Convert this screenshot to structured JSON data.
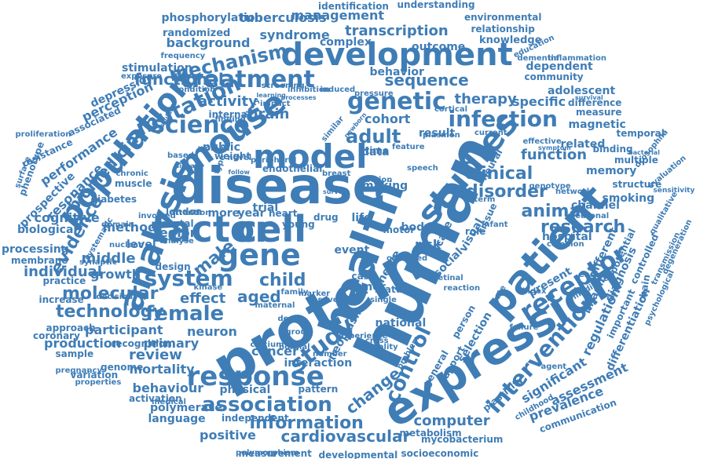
{
  "accent_color": "#3f7db6",
  "background_color": "#ffffff",
  "words": [
    "disease",
    "human",
    "protein",
    "expression",
    "analysis",
    "patient",
    "health",
    "development",
    "cell",
    "factor",
    "model",
    "population",
    "studies",
    "mouse",
    "science",
    "treatment",
    "gene",
    "study",
    "response",
    "genetic",
    "receptor",
    "female",
    "system",
    "intervention",
    "association",
    "control",
    "information",
    "mutation",
    "infection",
    "clinical",
    "adult",
    "cardiovascular",
    "animal",
    "disorder",
    "research",
    "technology",
    "molecular",
    "mechanism",
    "sequence",
    "male",
    "child",
    "aged",
    "effect",
    "transcription",
    "functional",
    "activity",
    "brain",
    "change",
    "evidence",
    "biomedicine",
    "tuberculosis",
    "phosphorylation",
    "management",
    "identification",
    "understanding",
    "environmental",
    "relationship",
    "knowledge",
    "randomized",
    "syndrome",
    "complex",
    "background",
    "behavior",
    "outcome",
    "community",
    "education",
    "dementia",
    "inflammation",
    "frequency",
    "stimulation",
    "dependent",
    "adolescent",
    "difference",
    "measure",
    "magnetic",
    "temporal",
    "drosophila",
    "therapy",
    "specific",
    "cohort",
    "data",
    "result",
    "related",
    "binding",
    "function",
    "multiple",
    "memory",
    "structure",
    "smoking",
    "channel",
    "evaluation",
    "sensitivity",
    "qualitative",
    "different",
    "potential",
    "controlled",
    "transmission",
    "diagnosis",
    "imaging",
    "important",
    "regulation",
    "differentiation",
    "degeneration",
    "psychological",
    "significant",
    "assessment",
    "prevalence",
    "communication",
    "childhood",
    "depression",
    "perception",
    "associated",
    "performance",
    "resistance",
    "proliferation",
    "prospective",
    "phenotype",
    "resonance",
    "method",
    "cognitive",
    "biological",
    "processing",
    "membrane",
    "individual",
    "practice",
    "middle",
    "growth",
    "level",
    "region",
    "mental",
    "design",
    "more",
    "year",
    "trial",
    "life",
    "heart",
    "body",
    "care",
    "risk",
    "social",
    "case",
    "role",
    "tissue",
    "infant",
    "hospital",
    "common",
    "present",
    "medicine",
    "england",
    "increase",
    "approach",
    "coronary",
    "production",
    "recognition",
    "sample",
    "participant",
    "primary",
    "neuron",
    "cancer",
    "group",
    "review",
    "mortality",
    "genome",
    "variation",
    "pregnancy",
    "properties",
    "behaviour",
    "activation",
    "medical",
    "polymerase",
    "language",
    "independent",
    "physical",
    "pattern",
    "positive",
    "polymorphism",
    "measurement",
    "developmental",
    "socioeconomic",
    "mycobacterium",
    "metabolism",
    "computer",
    "interaction",
    "number",
    "national",
    "support",
    "selection",
    "general",
    "person",
    "time",
    "visual",
    "neural",
    "speech",
    "action",
    "virus",
    "drug",
    "young",
    "motor",
    "public",
    "woman",
    "finding",
    "weight",
    "muscle",
    "chronic",
    "diabetes",
    "attention",
    "kinase",
    "maternal",
    "family",
    "tumor",
    "single",
    "nerve",
    "status",
    "cross",
    "problem",
    "condition",
    "internal",
    "impact",
    "plasmon",
    "current",
    "effective",
    "symptom",
    "genotype",
    "network",
    "neuronal",
    "survival",
    "bacterial",
    "endothelial",
    "peripheral",
    "novel",
    "signal",
    "based",
    "london",
    "analyse",
    "domain",
    "nuclear",
    "synaptic",
    "decision",
    "involved",
    "exposure",
    "surface",
    "systematic",
    "screening",
    "inhibition",
    "induced",
    "pressure",
    "processes",
    "learning",
    "theory",
    "similar",
    "newborn",
    "cortical",
    "feature",
    "making",
    "index",
    "rate",
    "reaction",
    "retinal",
    "failure",
    "agent",
    "plasticity",
    "neoplasm",
    "experience",
    "quality",
    "calcium",
    "normal",
    "several",
    "marker",
    "death",
    "chain",
    "survey",
    "observed",
    "event",
    "term",
    "type",
    "follow",
    "vascular",
    "breast",
    "higher",
    "scientific",
    "range"
  ]
}
